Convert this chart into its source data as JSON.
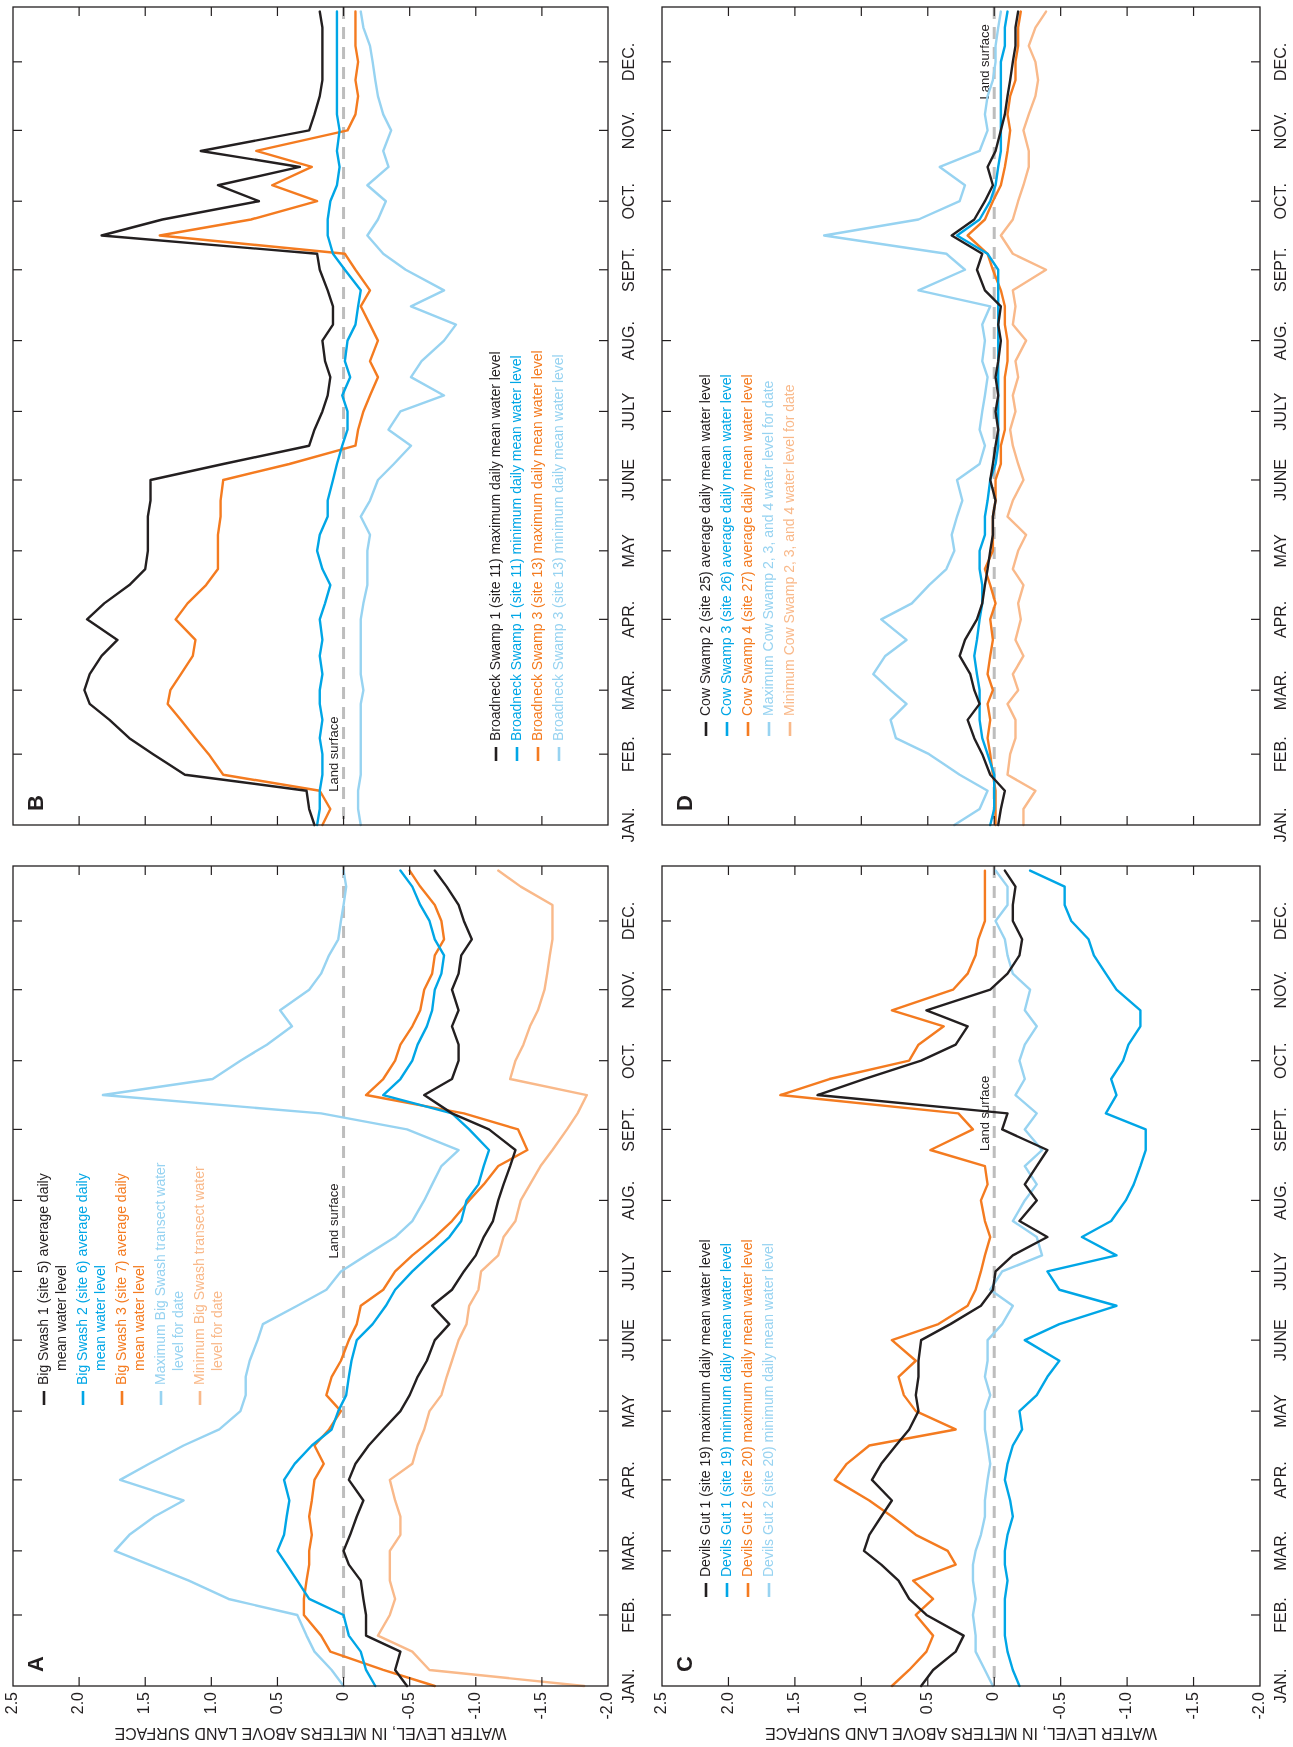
{
  "chart_data": [
    {
      "type": "line",
      "orientation": "horizontal",
      "title": "A",
      "xlabel": "WATER LEVEL, IN METERS ABOVE LAND SURFACE",
      "legend": "left",
      "ylim": [
        "--01-01",
        "--12-25"
      ],
      "yticks": [
        {
          "value": "--01-01",
          "label": "JAN."
        },
        {
          "value": "--02-01",
          "label": "FEB."
        },
        {
          "value": "--03-01",
          "label": "MAR."
        },
        {
          "value": "--04-01",
          "label": "APR."
        },
        {
          "value": "--05-01",
          "label": "MAY"
        },
        {
          "value": "--06-01",
          "label": "JUNE"
        },
        {
          "value": "--07-01",
          "label": "JULY"
        },
        {
          "value": "--08-01",
          "label": "AUG."
        },
        {
          "value": "--09-01",
          "label": "SEPT."
        },
        {
          "value": "--10-01",
          "label": "OCT."
        },
        {
          "value": "--11-01",
          "label": "NOV."
        },
        {
          "value": "--12-01",
          "label": "DEC."
        }
      ],
      "xlim": [
        2.5,
        -2
      ],
      "xticks": [
        2.5,
        {
          "value": 2,
          "label": "2.0"
        },
        1.5,
        {
          "value": 1,
          "label": "1.0"
        },
        0.5,
        0,
        -0.5,
        {
          "value": -1,
          "label": "-1.0"
        },
        -1.5,
        {
          "value": -2,
          "label": "-2.0"
        }
      ],
      "ref_lines": [
        {
          "axis": "x",
          "value": 0,
          "label": "Land surface",
          "color": "#bdbdbd",
          "line_style": "dashed"
        }
      ],
      "x": [
        "--01-01",
        "--01-08",
        "--01-16",
        "--01-23",
        "--02-01",
        "--02-08",
        "--02-16",
        "--02-23",
        "--03-01",
        "--03-08",
        "--03-16",
        "--03-23",
        "--04-01",
        "--04-08",
        "--04-16",
        "--04-23",
        "--05-01",
        "--05-08",
        "--05-16",
        "--05-23",
        "--06-01",
        "--06-08",
        "--06-16",
        "--06-23",
        "--07-01",
        "--07-08",
        "--07-16",
        "--07-23",
        "--08-01",
        "--08-08",
        "--08-16",
        "--08-23",
        "--09-01",
        "--09-08",
        "--09-16",
        "--09-23",
        "--10-01",
        "--10-08",
        "--10-16",
        "--10-23",
        "--11-01",
        "--11-08",
        "--11-16",
        "--11-23",
        "--12-01",
        "--12-08",
        "--12-16",
        "--12-23"
      ],
      "series": [
        {
          "name": "Big Swash 1 (site 5) average daily mean water level",
          "color": "#231f20",
          "values": [
            -0.48,
            -0.39,
            -0.43,
            -0.17,
            -0.17,
            -0.15,
            -0.13,
            -0.04,
            0,
            -0.05,
            -0.1,
            -0.15,
            -0.04,
            -0.09,
            -0.19,
            -0.3,
            -0.43,
            -0.5,
            -0.56,
            -0.63,
            -0.69,
            -0.8,
            -0.67,
            -0.82,
            -0.91,
            -1.0,
            -1.06,
            -1.13,
            -1.17,
            -1.21,
            -1.26,
            -1.3,
            -1.1,
            -0.82,
            -0.61,
            -0.82,
            -0.87,
            -0.87,
            -0.82,
            -0.87,
            -0.82,
            -0.87,
            -0.89,
            -0.97,
            -0.91,
            -0.87,
            -0.78,
            -0.69
          ]
        },
        {
          "name": "Big Swash 2 (site 6) average daily mean water level",
          "color": "#00a6e6",
          "values": [
            -0.24,
            -0.17,
            -0.13,
            -0.04,
            0,
            0.26,
            0.35,
            0.43,
            0.5,
            0.45,
            0.43,
            0.41,
            0.45,
            0.37,
            0.24,
            0.09,
            0.04,
            -0.02,
            -0.04,
            -0.06,
            -0.1,
            -0.22,
            -0.32,
            -0.39,
            -0.52,
            -0.65,
            -0.8,
            -0.89,
            -0.93,
            -1.02,
            -1.06,
            -1.1,
            -0.95,
            -0.82,
            -0.3,
            -0.43,
            -0.52,
            -0.56,
            -0.63,
            -0.67,
            -0.69,
            -0.74,
            -0.76,
            -0.69,
            -0.65,
            -0.58,
            -0.52,
            -0.43
          ]
        },
        {
          "name": "Big Swash 3 (site 7) average daily mean water level",
          "color": "#f47b20",
          "values": [
            -0.69,
            -0.3,
            0.1,
            0.17,
            0.3,
            0.3,
            0.28,
            0.26,
            0.26,
            0.24,
            0.26,
            0.24,
            0.22,
            0.15,
            0.22,
            0.11,
            0.02,
            0.13,
            0.09,
            0.02,
            -0.04,
            -0.1,
            -0.13,
            -0.3,
            -0.39,
            -0.52,
            -0.69,
            -0.82,
            -0.95,
            -1.06,
            -1.17,
            -1.39,
            -1.32,
            -0.91,
            -0.17,
            -0.3,
            -0.39,
            -0.43,
            -0.52,
            -0.58,
            -0.61,
            -0.67,
            -0.69,
            -0.76,
            -0.74,
            -0.69,
            -0.58,
            -0.5
          ]
        },
        {
          "name": "Maximum Big Swash transect water level for date",
          "color": "#97d3f1",
          "values": [
            0,
            0.09,
            0.22,
            0.28,
            0.35,
            0.87,
            1.17,
            1.47,
            1.73,
            1.62,
            1.43,
            1.21,
            1.69,
            1.47,
            1.21,
            0.94,
            0.78,
            0.74,
            0.74,
            0.71,
            0.65,
            0.61,
            0.35,
            0.13,
            0.02,
            -0.17,
            -0.39,
            -0.52,
            -0.61,
            -0.67,
            -0.74,
            -0.87,
            -0.48,
            0.17,
            1.82,
            0.99,
            0.78,
            0.58,
            0.39,
            0.48,
            0.26,
            0.17,
            0.11,
            0.04,
            0.02,
            0,
            -0.02,
            0
          ]
        },
        {
          "name": "Minimum Big Swash transect water level for date",
          "color": "#f9b98a",
          "values": [
            -1.82,
            -0.65,
            -0.52,
            -0.26,
            -0.35,
            -0.39,
            -0.35,
            -0.35,
            -0.35,
            -0.43,
            -0.43,
            -0.39,
            -0.35,
            -0.52,
            -0.56,
            -0.61,
            -0.65,
            -0.74,
            -0.78,
            -0.82,
            -0.87,
            -0.93,
            -0.95,
            -1.02,
            -1.04,
            -1.17,
            -1.21,
            -1.3,
            -1.34,
            -1.41,
            -1.49,
            -1.58,
            -1.69,
            -1.77,
            -1.84,
            -1.26,
            -1.3,
            -1.36,
            -1.41,
            -1.47,
            -1.52,
            -1.54,
            -1.56,
            -1.58,
            -1.58,
            -1.58,
            -1.34,
            -1.17
          ]
        }
      ]
    },
    {
      "type": "line",
      "orientation": "horizontal",
      "title": "B",
      "legend": "bottom right",
      "tick_labels": "y",
      "ylim": [
        "--01-01",
        "--12-25"
      ],
      "yticks": [
        {
          "value": "--01-01",
          "label": "JAN."
        },
        {
          "value": "--02-01",
          "label": "FEB."
        },
        {
          "value": "--03-01",
          "label": "MAR."
        },
        {
          "value": "--04-01",
          "label": "APR."
        },
        {
          "value": "--05-01",
          "label": "MAY"
        },
        {
          "value": "--06-01",
          "label": "JUNE"
        },
        {
          "value": "--07-01",
          "label": "JULY"
        },
        {
          "value": "--08-01",
          "label": "AUG."
        },
        {
          "value": "--09-01",
          "label": "SEPT."
        },
        {
          "value": "--10-01",
          "label": "OCT."
        },
        {
          "value": "--11-01",
          "label": "NOV."
        },
        {
          "value": "--12-01",
          "label": "DEC."
        }
      ],
      "xlim": [
        2.5,
        -2
      ],
      "xticks": [
        {
          "value": 2,
          "label": null
        },
        {
          "value": 1.5,
          "label": null
        },
        {
          "value": 1,
          "label": null
        },
        {
          "value": 0.5,
          "label": null
        },
        {
          "value": 0,
          "label": null
        },
        {
          "value": -0.5,
          "label": null
        },
        {
          "value": -1,
          "label": null
        },
        {
          "value": -1.5,
          "label": null
        }
      ],
      "ref_lines": [
        {
          "axis": "x",
          "value": 0,
          "label": "Land surface",
          "color": "#bdbdbd",
          "line_style": "dashed"
        }
      ],
      "x": [
        "--01-01",
        "--01-08",
        "--01-16",
        "--01-23",
        "--02-01",
        "--02-08",
        "--02-16",
        "--02-23",
        "--03-01",
        "--03-08",
        "--03-16",
        "--03-23",
        "--04-01",
        "--04-08",
        "--04-16",
        "--04-23",
        "--05-01",
        "--05-08",
        "--05-16",
        "--05-23",
        "--06-01",
        "--06-08",
        "--06-16",
        "--06-23",
        "--07-01",
        "--07-08",
        "--07-16",
        "--07-23",
        "--08-01",
        "--08-08",
        "--08-16",
        "--08-23",
        "--09-01",
        "--09-08",
        "--09-16",
        "--09-23",
        "--10-01",
        "--10-08",
        "--10-16",
        "--10-23",
        "--11-01",
        "--11-08",
        "--11-16",
        "--11-23",
        "--12-01",
        "--12-08",
        "--12-16",
        "--12-23"
      ],
      "series": [
        {
          "name": "Broadneck Swamp 1 (site 11) maximum daily mean water level",
          "color": "#231f20",
          "values": [
            0.22,
            0.26,
            0.28,
            1.2,
            1.44,
            1.62,
            1.77,
            1.92,
            1.96,
            1.92,
            1.83,
            1.71,
            1.94,
            1.81,
            1.62,
            1.5,
            1.48,
            1.48,
            1.48,
            1.46,
            1.46,
            0.91,
            0.26,
            0.22,
            0.16,
            0.12,
            0.1,
            0.14,
            0.16,
            0.08,
            0.08,
            0.12,
            0.18,
            0.2,
            1.83,
            1.37,
            0.64,
            0.95,
            0.33,
            1.08,
            0.26,
            0.22,
            0.18,
            0.16,
            0.16,
            0.16,
            0.16,
            0.18
          ]
        },
        {
          "name": "Broadneck Swamp 1 (site 11) minimum daily mean water level",
          "color": "#00a6e6",
          "values": [
            0.2,
            0.18,
            0.18,
            0.16,
            0.16,
            0.18,
            0.16,
            0.18,
            0.18,
            0.16,
            0.18,
            0.16,
            0.18,
            0.14,
            0.1,
            0.16,
            0.2,
            0.18,
            0.12,
            0.12,
            0.08,
            0.05,
            0.01,
            -0.03,
            -0.03,
            0.01,
            -0.05,
            -0.01,
            -0.03,
            -0.09,
            -0.11,
            -0.13,
            -0.01,
            0.08,
            0.12,
            0.12,
            0.1,
            0.05,
            0.03,
            0.05,
            0.03,
            0.05,
            0.05,
            0.05,
            0.05,
            0.05,
            0.05,
            0.05
          ]
        },
        {
          "name": "Broadneck Swamp 3 (site 13) maximum daily mean water level",
          "color": "#f47b20",
          "values": [
            0.16,
            0.1,
            0.18,
            0.91,
            1.02,
            1.12,
            1.23,
            1.33,
            1.31,
            1.23,
            1.14,
            1.12,
            1.27,
            1.18,
            1.04,
            0.95,
            0.95,
            0.95,
            0.93,
            0.93,
            0.91,
            0.41,
            -0.09,
            -0.11,
            -0.15,
            -0.2,
            -0.26,
            -0.2,
            -0.26,
            -0.2,
            -0.13,
            -0.2,
            -0.09,
            -0.01,
            1.39,
            0.7,
            0.2,
            0.54,
            0.24,
            0.66,
            -0.03,
            -0.09,
            -0.11,
            -0.09,
            -0.11,
            -0.09,
            -0.09,
            -0.09
          ]
        },
        {
          "name": "Broadneck Swamp 3 (site 13) minimum daily mean water level",
          "color": "#97d3f1",
          "values": [
            -0.13,
            -0.11,
            -0.11,
            -0.13,
            -0.13,
            -0.13,
            -0.13,
            -0.13,
            -0.15,
            -0.13,
            -0.13,
            -0.13,
            -0.13,
            -0.15,
            -0.18,
            -0.18,
            -0.18,
            -0.2,
            -0.13,
            -0.2,
            -0.26,
            -0.38,
            -0.51,
            -0.34,
            -0.43,
            -0.76,
            -0.51,
            -0.59,
            -0.76,
            -0.85,
            -0.51,
            -0.76,
            -0.47,
            -0.3,
            -0.18,
            -0.26,
            -0.32,
            -0.18,
            -0.34,
            -0.3,
            -0.36,
            -0.3,
            -0.26,
            -0.24,
            -0.22,
            -0.2,
            -0.15,
            -0.13
          ]
        }
      ]
    },
    {
      "type": "line",
      "orientation": "horizontal",
      "title": "C",
      "xlabel": "WATER LEVEL, IN METERS ABOVE LAND SURFACE",
      "legend": "bottom left",
      "ylim": [
        "--01-01",
        "--12-25"
      ],
      "yticks": [
        {
          "value": "--01-01",
          "label": "JAN."
        },
        {
          "value": "--02-01",
          "label": "FEB."
        },
        {
          "value": "--03-01",
          "label": "MAR."
        },
        {
          "value": "--04-01",
          "label": "APR."
        },
        {
          "value": "--05-01",
          "label": "MAY"
        },
        {
          "value": "--06-01",
          "label": "JUNE"
        },
        {
          "value": "--07-01",
          "label": "JULY"
        },
        {
          "value": "--08-01",
          "label": "AUG."
        },
        {
          "value": "--09-01",
          "label": "SEPT."
        },
        {
          "value": "--10-01",
          "label": "OCT."
        },
        {
          "value": "--11-01",
          "label": "NOV."
        },
        {
          "value": "--12-01",
          "label": "DEC."
        }
      ],
      "xlim": [
        2.5,
        -2
      ],
      "xticks": [
        2.5,
        {
          "value": 2,
          "label": "2.0"
        },
        1.5,
        {
          "value": 1,
          "label": "1.0"
        },
        0.5,
        0,
        -0.5,
        {
          "value": -1,
          "label": "-1.0"
        },
        -1.5,
        {
          "value": -2,
          "label": "-2.0"
        }
      ],
      "ref_lines": [
        {
          "axis": "x",
          "value": 0,
          "label": "Land surface",
          "color": "#bdbdbd",
          "line_style": "dashed"
        }
      ],
      "x": [
        "--01-01",
        "--01-08",
        "--01-16",
        "--01-23",
        "--02-01",
        "--02-08",
        "--02-16",
        "--02-23",
        "--03-01",
        "--03-08",
        "--03-16",
        "--03-23",
        "--04-01",
        "--04-08",
        "--04-16",
        "--04-23",
        "--05-01",
        "--05-08",
        "--05-16",
        "--05-23",
        "--06-01",
        "--06-08",
        "--06-16",
        "--06-23",
        "--07-01",
        "--07-08",
        "--07-16",
        "--07-23",
        "--08-01",
        "--08-08",
        "--08-16",
        "--08-23",
        "--09-01",
        "--09-08",
        "--09-16",
        "--09-23",
        "--10-01",
        "--10-08",
        "--10-16",
        "--10-23",
        "--11-01",
        "--11-08",
        "--11-16",
        "--11-23",
        "--12-01",
        "--12-08",
        "--12-16",
        "--12-23"
      ],
      "series": [
        {
          "name": "Devils Gut 1 (site 19) maximum daily mean water level",
          "color": "#231f20",
          "values": [
            0.55,
            0.46,
            0.29,
            0.23,
            0.51,
            0.64,
            0.72,
            0.85,
            0.98,
            0.94,
            0.85,
            0.77,
            0.92,
            0.85,
            0.74,
            0.64,
            0.57,
            0.59,
            0.57,
            0.57,
            0.55,
            0.33,
            0.1,
            0.01,
            -0.01,
            -0.14,
            -0.4,
            -0.19,
            -0.32,
            -0.23,
            -0.32,
            -0.4,
            -0.06,
            -0.1,
            1.33,
            0.98,
            0.55,
            0.29,
            0.2,
            0.51,
            0.03,
            -0.1,
            -0.19,
            -0.21,
            -0.14,
            -0.14,
            -0.16,
            -0.08
          ]
        },
        {
          "name": "Devils Gut 1 (site 19) minimum daily mean water level",
          "color": "#00a6e6",
          "values": [
            -0.19,
            -0.14,
            -0.1,
            -0.08,
            -0.08,
            -0.08,
            -0.1,
            -0.08,
            -0.08,
            -0.1,
            -0.14,
            -0.12,
            -0.08,
            -0.1,
            -0.14,
            -0.21,
            -0.19,
            -0.32,
            -0.4,
            -0.49,
            -0.23,
            -0.49,
            -0.92,
            -0.49,
            -0.4,
            -0.92,
            -0.66,
            -0.88,
            -0.99,
            -1.05,
            -1.1,
            -1.14,
            -1.14,
            -0.84,
            -0.92,
            -0.88,
            -0.97,
            -1.01,
            -1.1,
            -1.1,
            -0.92,
            -0.84,
            -0.75,
            -0.71,
            -0.58,
            -0.53,
            -0.53,
            -0.27
          ]
        },
        {
          "name": "Devils Gut 2 (site 20) maximum daily mean water level",
          "color": "#f47b20",
          "values": [
            0.77,
            0.64,
            0.51,
            0.46,
            0.59,
            0.46,
            0.61,
            0.29,
            0.35,
            0.59,
            0.77,
            0.94,
            1.2,
            1.11,
            0.94,
            0.29,
            0.59,
            0.68,
            0.72,
            0.59,
            0.77,
            0.42,
            0.2,
            0.14,
            0.1,
            0.07,
            0.03,
            0.07,
            0.1,
            0.05,
            0.07,
            0.48,
            0.16,
            0.27,
            1.61,
            1.24,
            0.64,
            0.57,
            0.38,
            0.77,
            0.31,
            0.2,
            0.14,
            0.12,
            0.07,
            0.07,
            0.07,
            0.07
          ]
        },
        {
          "name": "Devils Gut 2 (site 20) minimum daily mean water level",
          "color": "#97d3f1",
          "values": [
            0.01,
            0.07,
            0.14,
            0.14,
            0.16,
            0.14,
            0.16,
            0.16,
            0.14,
            0.1,
            0.07,
            0.07,
            0.05,
            0.03,
            0.05,
            0.07,
            0.07,
            0.03,
            0.07,
            0.05,
            0.05,
            -0.06,
            -0.14,
            0.03,
            -0.06,
            -0.36,
            -0.32,
            -0.14,
            -0.23,
            -0.32,
            -0.23,
            -0.36,
            -0.23,
            -0.32,
            -0.16,
            -0.23,
            -0.19,
            -0.23,
            -0.32,
            -0.23,
            -0.27,
            -0.14,
            -0.1,
            -0.08,
            -0.01,
            -0.1,
            -0.1,
            -0.01
          ]
        }
      ]
    },
    {
      "type": "line",
      "orientation": "horizontal",
      "title": "D",
      "legend": "bottom left",
      "tick_labels": "y",
      "ylim": [
        "--01-01",
        "--12-25"
      ],
      "yticks": [
        {
          "value": "--01-01",
          "label": "JAN."
        },
        {
          "value": "--02-01",
          "label": "FEB."
        },
        {
          "value": "--03-01",
          "label": "MAR."
        },
        {
          "value": "--04-01",
          "label": "APR."
        },
        {
          "value": "--05-01",
          "label": "MAY"
        },
        {
          "value": "--06-01",
          "label": "JUNE"
        },
        {
          "value": "--07-01",
          "label": "JULY"
        },
        {
          "value": "--08-01",
          "label": "AUG."
        },
        {
          "value": "--09-01",
          "label": "SEPT."
        },
        {
          "value": "--10-01",
          "label": "OCT."
        },
        {
          "value": "--11-01",
          "label": "NOV."
        },
        {
          "value": "--12-01",
          "label": "DEC."
        }
      ],
      "xlim": [
        2.5,
        -2
      ],
      "xticks": [
        {
          "value": 2,
          "label": null
        },
        {
          "value": 1.5,
          "label": null
        },
        {
          "value": 1,
          "label": null
        },
        {
          "value": 0.5,
          "label": null
        },
        {
          "value": 0,
          "label": null
        },
        {
          "value": -0.5,
          "label": null
        },
        {
          "value": -1,
          "label": null
        },
        {
          "value": -1.5,
          "label": null
        }
      ],
      "ref_lines": [
        {
          "axis": "x",
          "value": 0,
          "label": "Land surface",
          "color": "#bdbdbd",
          "line_style": "dashed"
        }
      ],
      "x": [
        "--01-01",
        "--01-08",
        "--01-16",
        "--01-23",
        "--02-01",
        "--02-08",
        "--02-16",
        "--02-23",
        "--03-01",
        "--03-08",
        "--03-16",
        "--03-23",
        "--04-01",
        "--04-08",
        "--04-16",
        "--04-23",
        "--05-01",
        "--05-08",
        "--05-16",
        "--05-23",
        "--06-01",
        "--06-08",
        "--06-16",
        "--06-23",
        "--07-01",
        "--07-08",
        "--07-16",
        "--07-23",
        "--08-01",
        "--08-08",
        "--08-16",
        "--08-23",
        "--09-01",
        "--09-08",
        "--09-16",
        "--09-23",
        "--10-01",
        "--10-08",
        "--10-16",
        "--10-23",
        "--11-01",
        "--11-08",
        "--11-16",
        "--11-23",
        "--12-01",
        "--12-08",
        "--12-16",
        "--12-23"
      ],
      "series": [
        {
          "name": "Cow Swamp 2 (site 25) average daily mean water level",
          "color": "#231f20",
          "values": [
            -0.03,
            -0.05,
            -0.08,
            0.03,
            0.09,
            0.15,
            0.2,
            0.11,
            0.15,
            0.18,
            0.26,
            0.22,
            0.13,
            0.09,
            0.07,
            0.05,
            0.03,
            0.01,
            0.01,
            -0.01,
            0.03,
            0.01,
            -0.01,
            -0.03,
            -0.01,
            -0.03,
            -0.01,
            -0.03,
            -0.05,
            -0.03,
            -0.05,
            0.07,
            0.13,
            0.09,
            0.32,
            0.15,
            0.07,
            0.01,
            0.05,
            -0.01,
            -0.05,
            -0.08,
            -0.1,
            -0.12,
            -0.14,
            -0.16,
            -0.16,
            -0.18
          ]
        },
        {
          "name": "Cow Swamp 3 (site 26) average daily mean water level",
          "color": "#00a6e6",
          "values": [
            0.03,
            0,
            0,
            0,
            0.05,
            0.09,
            0.11,
            0.11,
            0.11,
            0.13,
            0.15,
            0.13,
            0.11,
            0.09,
            0.09,
            0.11,
            0.11,
            0.07,
            0.07,
            0.05,
            0.03,
            -0.01,
            -0.03,
            -0.03,
            -0.03,
            -0.03,
            -0.03,
            -0.03,
            -0.03,
            -0.03,
            -0.03,
            -0.03,
            -0.03,
            0.05,
            0.28,
            0.11,
            0.03,
            -0.01,
            -0.03,
            -0.05,
            -0.05,
            -0.05,
            -0.05,
            -0.05,
            -0.05,
            -0.08,
            -0.08,
            -0.1
          ]
        },
        {
          "name": "Cow Swamp 4 (site 27) average daily mean water level",
          "color": "#f47b20",
          "values": [
            -0.01,
            -0.01,
            -0.01,
            0.01,
            0.03,
            0.05,
            0.03,
            0.05,
            0.01,
            0.05,
            0.03,
            0.01,
            0.03,
            -0.01,
            0.03,
            0.07,
            0.01,
            0.01,
            0.01,
            -0.01,
            -0.01,
            -0.05,
            -0.05,
            -0.08,
            -0.08,
            -0.08,
            -0.08,
            -0.1,
            -0.1,
            -0.08,
            -0.08,
            -0.05,
            0.01,
            0.05,
            0.2,
            0.07,
            0.01,
            -0.05,
            -0.08,
            -0.1,
            -0.12,
            -0.1,
            -0.12,
            -0.16,
            -0.16,
            -0.18,
            -0.18,
            -0.2
          ]
        },
        {
          "name": "Maximum Cow Swamp 2, 3, and 4 water level for date",
          "color": "#97d3f1",
          "values": [
            0.3,
            0.11,
            0.05,
            0.26,
            0.49,
            0.74,
            0.78,
            0.66,
            0.78,
            0.91,
            0.82,
            0.66,
            0.85,
            0.62,
            0.49,
            0.36,
            0.3,
            0.32,
            0.28,
            0.24,
            0.28,
            0.11,
            0.07,
            0.11,
            0.09,
            0.07,
            0.05,
            0.09,
            0.07,
            0.09,
            0.03,
            0.57,
            0.22,
            0.36,
            1.28,
            0.57,
            0.26,
            0.22,
            0.41,
            0.11,
            0.05,
            0.07,
            0.05,
            0.01,
            -0.01,
            -0.01,
            -0.03,
            -0.05
          ]
        },
        {
          "name": "Minimum Cow Swamp 2, 3, and 4 water level for date",
          "color": "#f9b98a",
          "values": [
            -0.22,
            -0.22,
            -0.31,
            -0.1,
            -0.12,
            -0.16,
            -0.16,
            -0.1,
            -0.18,
            -0.14,
            -0.22,
            -0.16,
            -0.2,
            -0.18,
            -0.22,
            -0.14,
            -0.18,
            -0.24,
            -0.1,
            -0.14,
            -0.22,
            -0.18,
            -0.14,
            -0.12,
            -0.16,
            -0.14,
            -0.18,
            -0.16,
            -0.24,
            -0.14,
            -0.16,
            -0.14,
            -0.39,
            -0.14,
            -0.05,
            -0.14,
            -0.18,
            -0.22,
            -0.26,
            -0.26,
            -0.22,
            -0.26,
            -0.31,
            -0.33,
            -0.31,
            -0.26,
            -0.31,
            -0.39
          ]
        }
      ]
    }
  ]
}
